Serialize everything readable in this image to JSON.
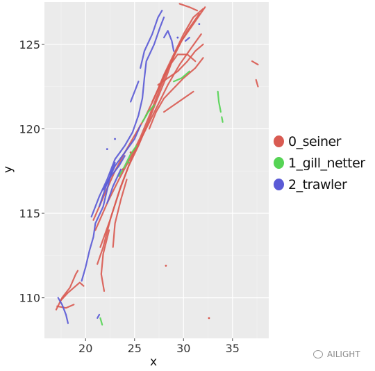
{
  "chart_data": {
    "type": "scatter",
    "title": "",
    "xlabel": "x",
    "ylabel": "y",
    "xlim": [
      15.8,
      38.7
    ],
    "ylim": [
      107.6,
      127.5
    ],
    "x_ticks": [
      20,
      25,
      30,
      35
    ],
    "y_ticks": [
      110,
      115,
      120,
      125
    ],
    "grid": true,
    "legend_position": "right",
    "series": [
      {
        "name": "0_seiner",
        "color": "#D95B52",
        "tracks": [
          [
            [
              17.0,
              109.3
            ],
            [
              17.6,
              110.0
            ],
            [
              18.4,
              110.6
            ],
            [
              19.0,
              111.4
            ],
            [
              19.2,
              111.6
            ]
          ],
          [
            [
              17.4,
              109.8
            ],
            [
              18.2,
              110.3
            ],
            [
              19.4,
              110.9
            ],
            [
              19.8,
              110.7
            ]
          ],
          [
            [
              17.1,
              109.5
            ],
            [
              18.0,
              109.4
            ],
            [
              18.8,
              109.6
            ]
          ],
          [
            [
              20.8,
              114.6
            ],
            [
              22.0,
              116.2
            ],
            [
              23.0,
              117.5
            ],
            [
              24.0,
              118.6
            ],
            [
              25.0,
              119.6
            ],
            [
              26.0,
              120.6
            ],
            [
              27.0,
              121.8
            ],
            [
              28.0,
              123.2
            ],
            [
              29.0,
              124.4
            ],
            [
              30.0,
              125.6
            ],
            [
              31.0,
              126.6
            ],
            [
              32.0,
              127.1
            ]
          ],
          [
            [
              21.0,
              114.0
            ],
            [
              22.2,
              115.6
            ],
            [
              23.4,
              117.0
            ],
            [
              24.5,
              118.2
            ],
            [
              25.6,
              119.5
            ],
            [
              26.6,
              120.9
            ],
            [
              27.6,
              122.4
            ],
            [
              28.6,
              123.8
            ],
            [
              29.8,
              125.2
            ],
            [
              31.0,
              126.2
            ],
            [
              32.2,
              127.2
            ]
          ],
          [
            [
              21.5,
              113.0
            ],
            [
              22.5,
              114.6
            ],
            [
              23.5,
              116.4
            ],
            [
              24.4,
              117.8
            ],
            [
              25.4,
              119.0
            ],
            [
              26.4,
              120.4
            ],
            [
              27.2,
              121.6
            ],
            [
              28.2,
              123.0
            ],
            [
              29.2,
              124.6
            ],
            [
              30.4,
              125.8
            ],
            [
              31.6,
              126.8
            ]
          ],
          [
            [
              21.2,
              112.0
            ],
            [
              21.8,
              113.0
            ],
            [
              22.6,
              114.8
            ],
            [
              23.6,
              116.6
            ],
            [
              24.8,
              118.4
            ],
            [
              26.0,
              119.8
            ],
            [
              27.2,
              121.2
            ],
            [
              28.4,
              122.6
            ],
            [
              29.6,
              123.8
            ],
            [
              30.8,
              124.8
            ],
            [
              31.8,
              125.6
            ]
          ],
          [
            [
              21.9,
              110.4
            ],
            [
              21.6,
              111.4
            ],
            [
              21.8,
              112.6
            ],
            [
              22.4,
              114.0
            ]
          ],
          [
            [
              22.8,
              113.0
            ],
            [
              23.0,
              114.4
            ],
            [
              23.6,
              115.8
            ],
            [
              24.2,
              117.0
            ]
          ],
          [
            [
              26.5,
              120.0
            ],
            [
              27.2,
              121.0
            ],
            [
              28.0,
              121.8
            ],
            [
              29.0,
              122.4
            ],
            [
              30.0,
              123.0
            ],
            [
              31.2,
              123.6
            ],
            [
              32.0,
              124.2
            ]
          ],
          [
            [
              26.8,
              121.6
            ],
            [
              27.6,
              122.6
            ],
            [
              28.4,
              123.6
            ],
            [
              29.4,
              124.4
            ],
            [
              30.4,
              124.4
            ],
            [
              31.2,
              124.0
            ]
          ],
          [
            [
              27.4,
              122.6
            ],
            [
              28.4,
              123.0
            ],
            [
              29.4,
              123.4
            ],
            [
              30.4,
              124.0
            ],
            [
              31.2,
              124.6
            ],
            [
              32.0,
              125.0
            ]
          ],
          [
            [
              28.0,
              121.0
            ],
            [
              29.0,
              121.4
            ],
            [
              30.0,
              121.8
            ],
            [
              31.0,
              122.2
            ]
          ],
          [
            [
              37.0,
              124.0
            ],
            [
              37.6,
              123.8
            ]
          ],
          [
            [
              37.4,
              122.9
            ],
            [
              37.6,
              122.5
            ]
          ],
          [
            [
              29.6,
              127.4
            ],
            [
              30.6,
              127.2
            ],
            [
              31.4,
              127.0
            ]
          ]
        ],
        "points": [
          [
            28.2,
            111.9
          ],
          [
            32.6,
            108.8
          ],
          [
            24.6,
            118.6
          ],
          [
            23.8,
            117.6
          ]
        ]
      },
      {
        "name": "1_gill_netter",
        "color": "#56D455",
        "tracks": [
          [
            [
              23.4,
              117.2
            ],
            [
              24.0,
              117.8
            ],
            [
              24.6,
              118.5
            ],
            [
              25.2,
              119.0
            ]
          ],
          [
            [
              25.8,
              120.4
            ],
            [
              26.4,
              121.0
            ],
            [
              27.0,
              121.4
            ]
          ],
          [
            [
              29.0,
              122.8
            ],
            [
              29.8,
              123.0
            ],
            [
              30.6,
              123.4
            ]
          ],
          [
            [
              33.5,
              122.2
            ],
            [
              33.6,
              121.6
            ],
            [
              33.8,
              121.0
            ]
          ],
          [
            [
              33.9,
              120.7
            ],
            [
              34.0,
              120.4
            ]
          ],
          [
            [
              21.5,
              108.8
            ],
            [
              21.7,
              108.4
            ]
          ]
        ],
        "points": [
          [
            26.2,
            120.8
          ],
          [
            24.4,
            118.0
          ]
        ]
      },
      {
        "name": "2_trawler",
        "color": "#5B5BD6",
        "tracks": [
          [
            [
              18.2,
              108.5
            ],
            [
              18.0,
              109.0
            ],
            [
              17.6,
              109.6
            ],
            [
              17.2,
              110.0
            ]
          ],
          [
            [
              19.6,
              111.0
            ],
            [
              20.0,
              111.8
            ],
            [
              20.4,
              112.8
            ],
            [
              20.8,
              113.6
            ],
            [
              21.0,
              114.4
            ],
            [
              21.8,
              115.4
            ],
            [
              22.2,
              116.4
            ],
            [
              22.6,
              117.4
            ],
            [
              23.0,
              118.0
            ]
          ],
          [
            [
              20.6,
              114.8
            ],
            [
              21.4,
              116.0
            ],
            [
              22.2,
              117.0
            ],
            [
              23.0,
              118.2
            ],
            [
              24.0,
              119.0
            ],
            [
              24.8,
              119.8
            ],
            [
              25.4,
              120.8
            ],
            [
              25.8,
              121.8
            ],
            [
              26.0,
              123.0
            ],
            [
              26.2,
              124.0
            ],
            [
              27.0,
              125.0
            ],
            [
              27.6,
              126.0
            ],
            [
              28.0,
              126.6
            ]
          ],
          [
            [
              21.4,
              115.4
            ],
            [
              22.2,
              116.8
            ],
            [
              23.0,
              117.8
            ],
            [
              24.0,
              118.6
            ],
            [
              25.0,
              119.4
            ],
            [
              25.6,
              120.2
            ]
          ],
          [
            [
              21.8,
              116.4
            ],
            [
              22.6,
              117.2
            ],
            [
              23.4,
              117.8
            ],
            [
              24.0,
              118.4
            ]
          ],
          [
            [
              22.2,
              115.6
            ],
            [
              22.8,
              116.6
            ],
            [
              23.6,
              117.6
            ]
          ],
          [
            [
              25.6,
              123.6
            ],
            [
              26.0,
              124.6
            ],
            [
              26.8,
              125.6
            ],
            [
              27.4,
              126.6
            ],
            [
              27.8,
              127.0
            ]
          ],
          [
            [
              28.0,
              125.4
            ],
            [
              28.4,
              125.8
            ],
            [
              28.8,
              125.2
            ],
            [
              29.0,
              124.6
            ]
          ],
          [
            [
              24.6,
              121.6
            ],
            [
              25.0,
              122.2
            ],
            [
              25.4,
              122.8
            ]
          ],
          [
            [
              21.2,
              108.8
            ],
            [
              21.4,
              109.0
            ]
          ],
          [
            [
              30.2,
              125.2
            ],
            [
              30.6,
              125.4
            ]
          ]
        ],
        "points": [
          [
            22.2,
            118.8
          ],
          [
            23.0,
            119.4
          ],
          [
            31.6,
            126.2
          ],
          [
            29.4,
            125.4
          ]
        ]
      }
    ]
  },
  "watermark": {
    "text": "AILIGHT"
  }
}
